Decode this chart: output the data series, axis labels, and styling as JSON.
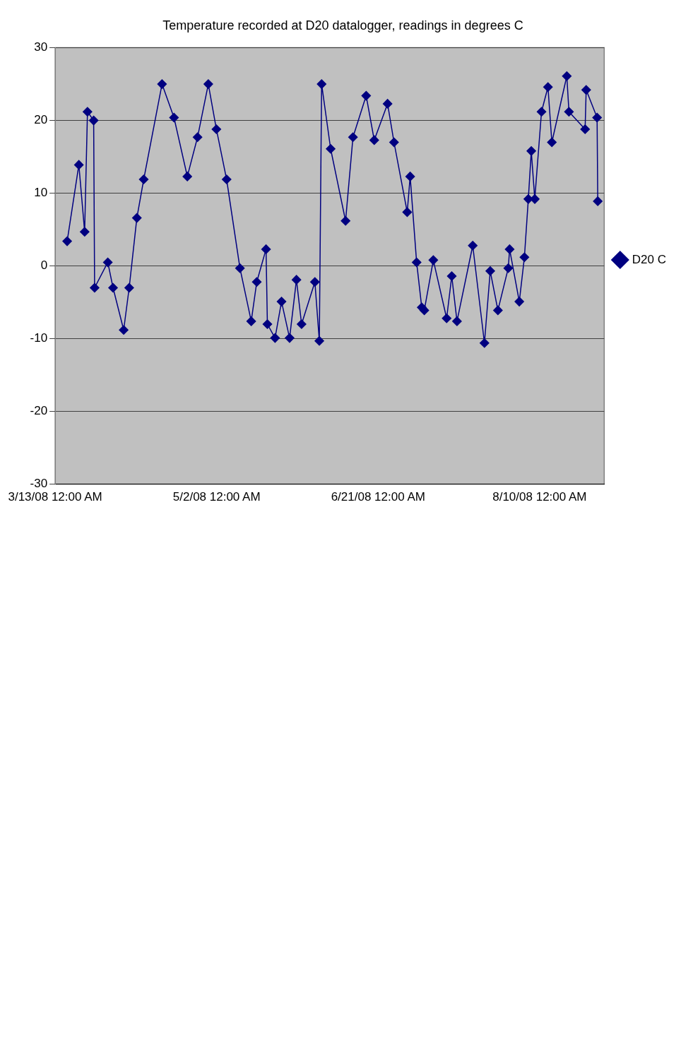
{
  "chart_data": {
    "type": "line",
    "title": "Temperature recorded at D20 datalogger, readings in degrees C",
    "x": [
      "2008-03-16T17:00",
      "2008-03-20T08:00",
      "2008-03-22T03:00",
      "2008-03-23T00:00",
      "2008-03-24T22:00",
      "2008-03-25T05:00",
      "2008-03-29T07:00",
      "2008-03-30T22:00",
      "2008-04-03T05:00",
      "2008-04-04T22:00",
      "2008-04-07T07:00",
      "2008-04-09T10:00",
      "2008-04-15T02:00",
      "2008-04-18T19:00",
      "2008-04-22T22:00",
      "2008-04-26T02:00",
      "2008-04-29T10:00",
      "2008-05-01T22:00",
      "2008-05-05T02:00",
      "2008-05-09T05:00",
      "2008-05-12T17:00",
      "2008-05-14T10:00",
      "2008-05-17T07:00",
      "2008-05-17T17:00",
      "2008-05-20T02:00",
      "2008-05-22T02:00",
      "2008-05-24T14:00",
      "2008-05-26T17:00",
      "2008-05-28T07:00",
      "2008-06-01T10:00",
      "2008-06-02T19:00",
      "2008-06-03T12:00",
      "2008-06-06T07:00",
      "2008-06-10T22:00",
      "2008-06-13T05:00",
      "2008-06-17T07:00",
      "2008-06-19T19:00",
      "2008-06-23T22:00",
      "2008-06-25T22:00",
      "2008-06-30T00:00",
      "2008-06-30T22:00",
      "2008-07-02T22:00",
      "2008-07-04T12:00",
      "2008-07-05T07:00",
      "2008-07-08T02:00",
      "2008-07-12T05:00",
      "2008-07-13T19:00",
      "2008-07-15T10:00",
      "2008-07-20T07:00",
      "2008-07-23T22:00",
      "2008-07-25T17:00",
      "2008-07-28T02:00",
      "2008-07-31T07:00",
      "2008-07-31T17:00",
      "2008-08-03T17:00",
      "2008-08-05T07:00",
      "2008-08-06T12:00",
      "2008-08-07T10:00",
      "2008-08-08T12:00",
      "2008-08-10T14:00",
      "2008-08-12T14:00",
      "2008-08-13T19:00",
      "2008-08-18T10:00",
      "2008-08-19T02:00",
      "2008-08-24T02:00",
      "2008-08-24T10:00",
      "2008-08-27T19:00",
      "2008-08-28T00:00"
    ],
    "series": [
      {
        "name": "D20 C",
        "color": "#000080",
        "values": [
          3.4,
          13.9,
          4.7,
          21.2,
          20,
          -3,
          0.5,
          -3,
          -8.8,
          -3,
          6.6,
          11.9,
          25,
          20.4,
          12.3,
          17.7,
          25,
          18.8,
          11.9,
          -0.3,
          -7.6,
          -2.2,
          2.3,
          -8,
          -9.9,
          -4.9,
          -9.9,
          -1.9,
          -8,
          -2.2,
          -10.3,
          25,
          16.1,
          6.2,
          17.7,
          23.4,
          17.3,
          22.3,
          17,
          7.4,
          12.3,
          0.5,
          -5.7,
          -6.1,
          0.8,
          -7.2,
          -1.4,
          -7.6,
          2.8,
          -10.6,
          -0.7,
          -6.1,
          -0.3,
          2.3,
          -4.9,
          1.2,
          9.2,
          15.8,
          9.2,
          21.2,
          24.6,
          17,
          26.1,
          21.2,
          18.8,
          24.2,
          20.4,
          8.9
        ]
      }
    ],
    "xlim": [
      "2008-03-13",
      "2008-08-30"
    ],
    "xticks": [
      {
        "value": "2008-03-13",
        "label": "3/13/08 12:00 AM"
      },
      {
        "value": "2008-05-02",
        "label": "5/2/08 12:00 AM"
      },
      {
        "value": "2008-06-21",
        "label": "6/21/08 12:00 AM"
      },
      {
        "value": "2008-08-10",
        "label": "8/10/08 12:00 AM"
      }
    ],
    "ylim": [
      -30,
      30
    ],
    "yticks": [
      -30,
      -20,
      -10,
      0,
      10,
      20,
      30
    ],
    "grid": "y",
    "legend": "right",
    "marker": "diamond",
    "line_style": "solid"
  }
}
